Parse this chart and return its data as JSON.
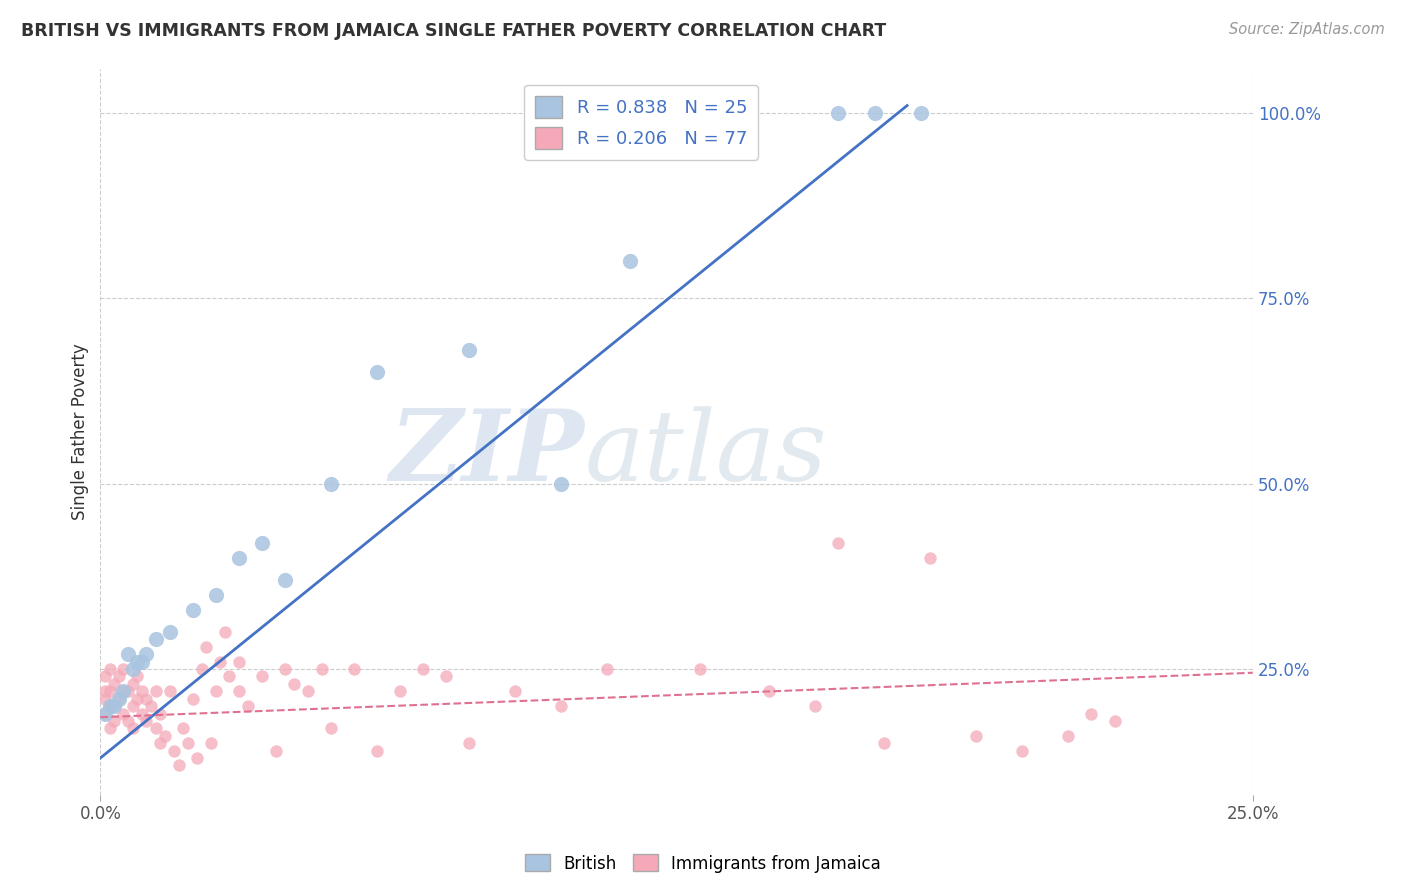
{
  "title": "BRITISH VS IMMIGRANTS FROM JAMAICA SINGLE FATHER POVERTY CORRELATION CHART",
  "source": "Source: ZipAtlas.com",
  "ylabel": "Single Father Poverty",
  "y_tick_labels_right": [
    "100.0%",
    "75.0%",
    "50.0%",
    "25.0%"
  ],
  "y_tick_positions_right": [
    1.0,
    0.75,
    0.5,
    0.25
  ],
  "xlim": [
    0.0,
    0.25
  ],
  "ylim": [
    0.08,
    1.06
  ],
  "british_R": 0.838,
  "british_N": 25,
  "jamaica_R": 0.206,
  "jamaica_N": 77,
  "british_color": "#a8c4e0",
  "british_line_color": "#4472c4",
  "jamaica_color": "#f4a8b8",
  "jamaica_line_color": "#e07090",
  "watermark_color": "#c8d8e8",
  "legend_text_color": "#4472c4",
  "grid_color": "#cccccc",
  "title_color": "#333333",
  "source_color": "#999999",
  "british_x": [
    0.001,
    0.002,
    0.003,
    0.004,
    0.005,
    0.006,
    0.007,
    0.008,
    0.009,
    0.01,
    0.012,
    0.015,
    0.02,
    0.025,
    0.03,
    0.035,
    0.04,
    0.05,
    0.06,
    0.08,
    0.1,
    0.115,
    0.16,
    0.168,
    0.178
  ],
  "british_y": [
    0.19,
    0.2,
    0.2,
    0.21,
    0.22,
    0.27,
    0.25,
    0.26,
    0.26,
    0.27,
    0.29,
    0.3,
    0.33,
    0.35,
    0.4,
    0.42,
    0.37,
    0.5,
    0.65,
    0.68,
    0.5,
    0.8,
    1.0,
    1.0,
    1.0
  ],
  "jamaica_x": [
    0.001,
    0.001,
    0.001,
    0.001,
    0.002,
    0.002,
    0.002,
    0.002,
    0.003,
    0.003,
    0.003,
    0.004,
    0.004,
    0.005,
    0.005,
    0.005,
    0.006,
    0.006,
    0.007,
    0.007,
    0.007,
    0.008,
    0.008,
    0.009,
    0.009,
    0.01,
    0.01,
    0.011,
    0.012,
    0.012,
    0.013,
    0.013,
    0.014,
    0.015,
    0.016,
    0.017,
    0.018,
    0.019,
    0.02,
    0.021,
    0.022,
    0.023,
    0.024,
    0.025,
    0.026,
    0.027,
    0.028,
    0.03,
    0.03,
    0.032,
    0.035,
    0.038,
    0.04,
    0.042,
    0.045,
    0.048,
    0.05,
    0.055,
    0.06,
    0.065,
    0.07,
    0.075,
    0.08,
    0.09,
    0.1,
    0.11,
    0.13,
    0.145,
    0.155,
    0.16,
    0.17,
    0.18,
    0.19,
    0.2,
    0.21,
    0.215,
    0.22
  ],
  "jamaica_y": [
    0.19,
    0.21,
    0.22,
    0.24,
    0.17,
    0.2,
    0.22,
    0.25,
    0.18,
    0.2,
    0.23,
    0.21,
    0.24,
    0.19,
    0.22,
    0.25,
    0.18,
    0.22,
    0.17,
    0.2,
    0.23,
    0.21,
    0.24,
    0.19,
    0.22,
    0.18,
    0.21,
    0.2,
    0.17,
    0.22,
    0.15,
    0.19,
    0.16,
    0.22,
    0.14,
    0.12,
    0.17,
    0.15,
    0.21,
    0.13,
    0.25,
    0.28,
    0.15,
    0.22,
    0.26,
    0.3,
    0.24,
    0.22,
    0.26,
    0.2,
    0.24,
    0.14,
    0.25,
    0.23,
    0.22,
    0.25,
    0.17,
    0.25,
    0.14,
    0.22,
    0.25,
    0.24,
    0.15,
    0.22,
    0.2,
    0.25,
    0.25,
    0.22,
    0.2,
    0.42,
    0.15,
    0.4,
    0.16,
    0.14,
    0.16,
    0.19,
    0.18
  ]
}
